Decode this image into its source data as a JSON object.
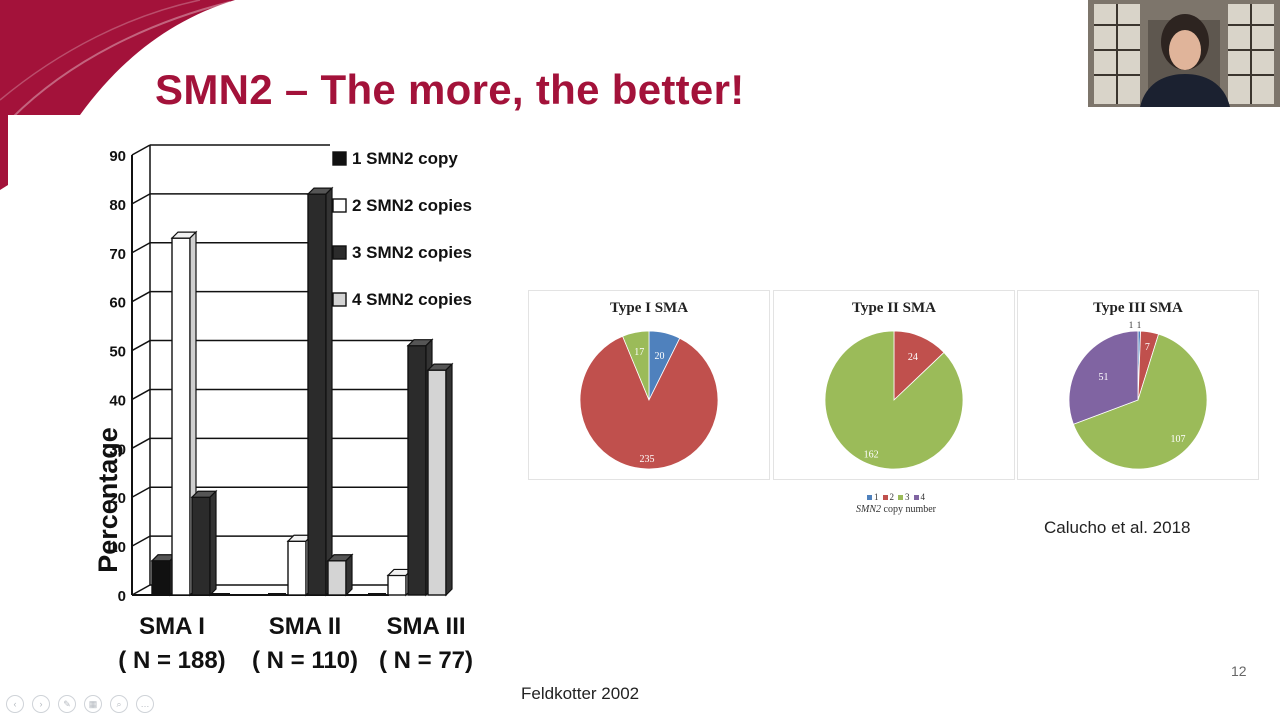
{
  "slide": {
    "title": "SMN2 – The more, the better!",
    "page_number": "12",
    "citation_left": "Feldkotter 2002",
    "citation_right": "Calucho et al.  2018",
    "accent_color": "#a3123a"
  },
  "controls": {
    "items": [
      {
        "name": "prev-slide-icon",
        "glyph": "‹"
      },
      {
        "name": "next-slide-icon",
        "glyph": "›"
      },
      {
        "name": "pen-icon",
        "glyph": "✎"
      },
      {
        "name": "slides-grid-icon",
        "glyph": "▦"
      },
      {
        "name": "zoom-icon",
        "glyph": "⌕"
      },
      {
        "name": "more-options-icon",
        "glyph": "…"
      }
    ]
  },
  "chart_data": [
    {
      "type": "bar",
      "ylabel": "Percentage",
      "ylim": [
        0,
        90
      ],
      "yticks": [
        "0",
        "10",
        "20",
        "30",
        "40",
        "50",
        "60",
        "70",
        "80",
        "90"
      ],
      "categories": [
        "SMA I",
        "SMA II",
        "SMA III"
      ],
      "category_sublabels": [
        "( N = 188)",
        "( N = 110)",
        "( N = 77)"
      ],
      "series": [
        {
          "name": "1 SMN2 copy",
          "values": [
            7,
            0,
            0
          ],
          "color": "#111111"
        },
        {
          "name": "2 SMN2 copies",
          "values": [
            73,
            11,
            4
          ],
          "color": "#ffffff"
        },
        {
          "name": "3 SMN2 copies",
          "values": [
            20,
            82,
            51
          ],
          "color": "#2b2b2b"
        },
        {
          "name": "4 SMN2 copies",
          "values": [
            0,
            7,
            46
          ],
          "color": "#e8e8e8"
        }
      ],
      "legend_position": "top-right",
      "grid": true
    },
    {
      "type": "pie",
      "title": "Type I SMA",
      "labels": [
        "1",
        "2",
        "3",
        "4"
      ],
      "values": [
        20,
        235,
        17,
        0
      ],
      "colors": [
        "#4f81bd",
        "#c0504d",
        "#9bbb59",
        "#8064a2"
      ]
    },
    {
      "type": "pie",
      "title": "Type II SMA",
      "labels": [
        "1",
        "2",
        "3",
        "4"
      ],
      "values": [
        0,
        24,
        162,
        0
      ],
      "colors": [
        "#4f81bd",
        "#c0504d",
        "#9bbb59",
        "#8064a2"
      ]
    },
    {
      "type": "pie",
      "title": "Type III SMA",
      "labels": [
        "1",
        "2",
        "3",
        "4"
      ],
      "values": [
        1,
        7,
        107,
        51
      ],
      "small_labels": [
        "1",
        "1"
      ],
      "colors": [
        "#4f81bd",
        "#c0504d",
        "#9bbb59",
        "#8064a2"
      ]
    }
  ],
  "pie_legend": {
    "items": [
      {
        "label": "1",
        "color": "#4f81bd"
      },
      {
        "label": "2",
        "color": "#c0504d"
      },
      {
        "label": "3",
        "color": "#9bbb59"
      },
      {
        "label": "4",
        "color": "#8064a2"
      }
    ],
    "title": "copy number",
    "title_italic": "SMN2"
  }
}
